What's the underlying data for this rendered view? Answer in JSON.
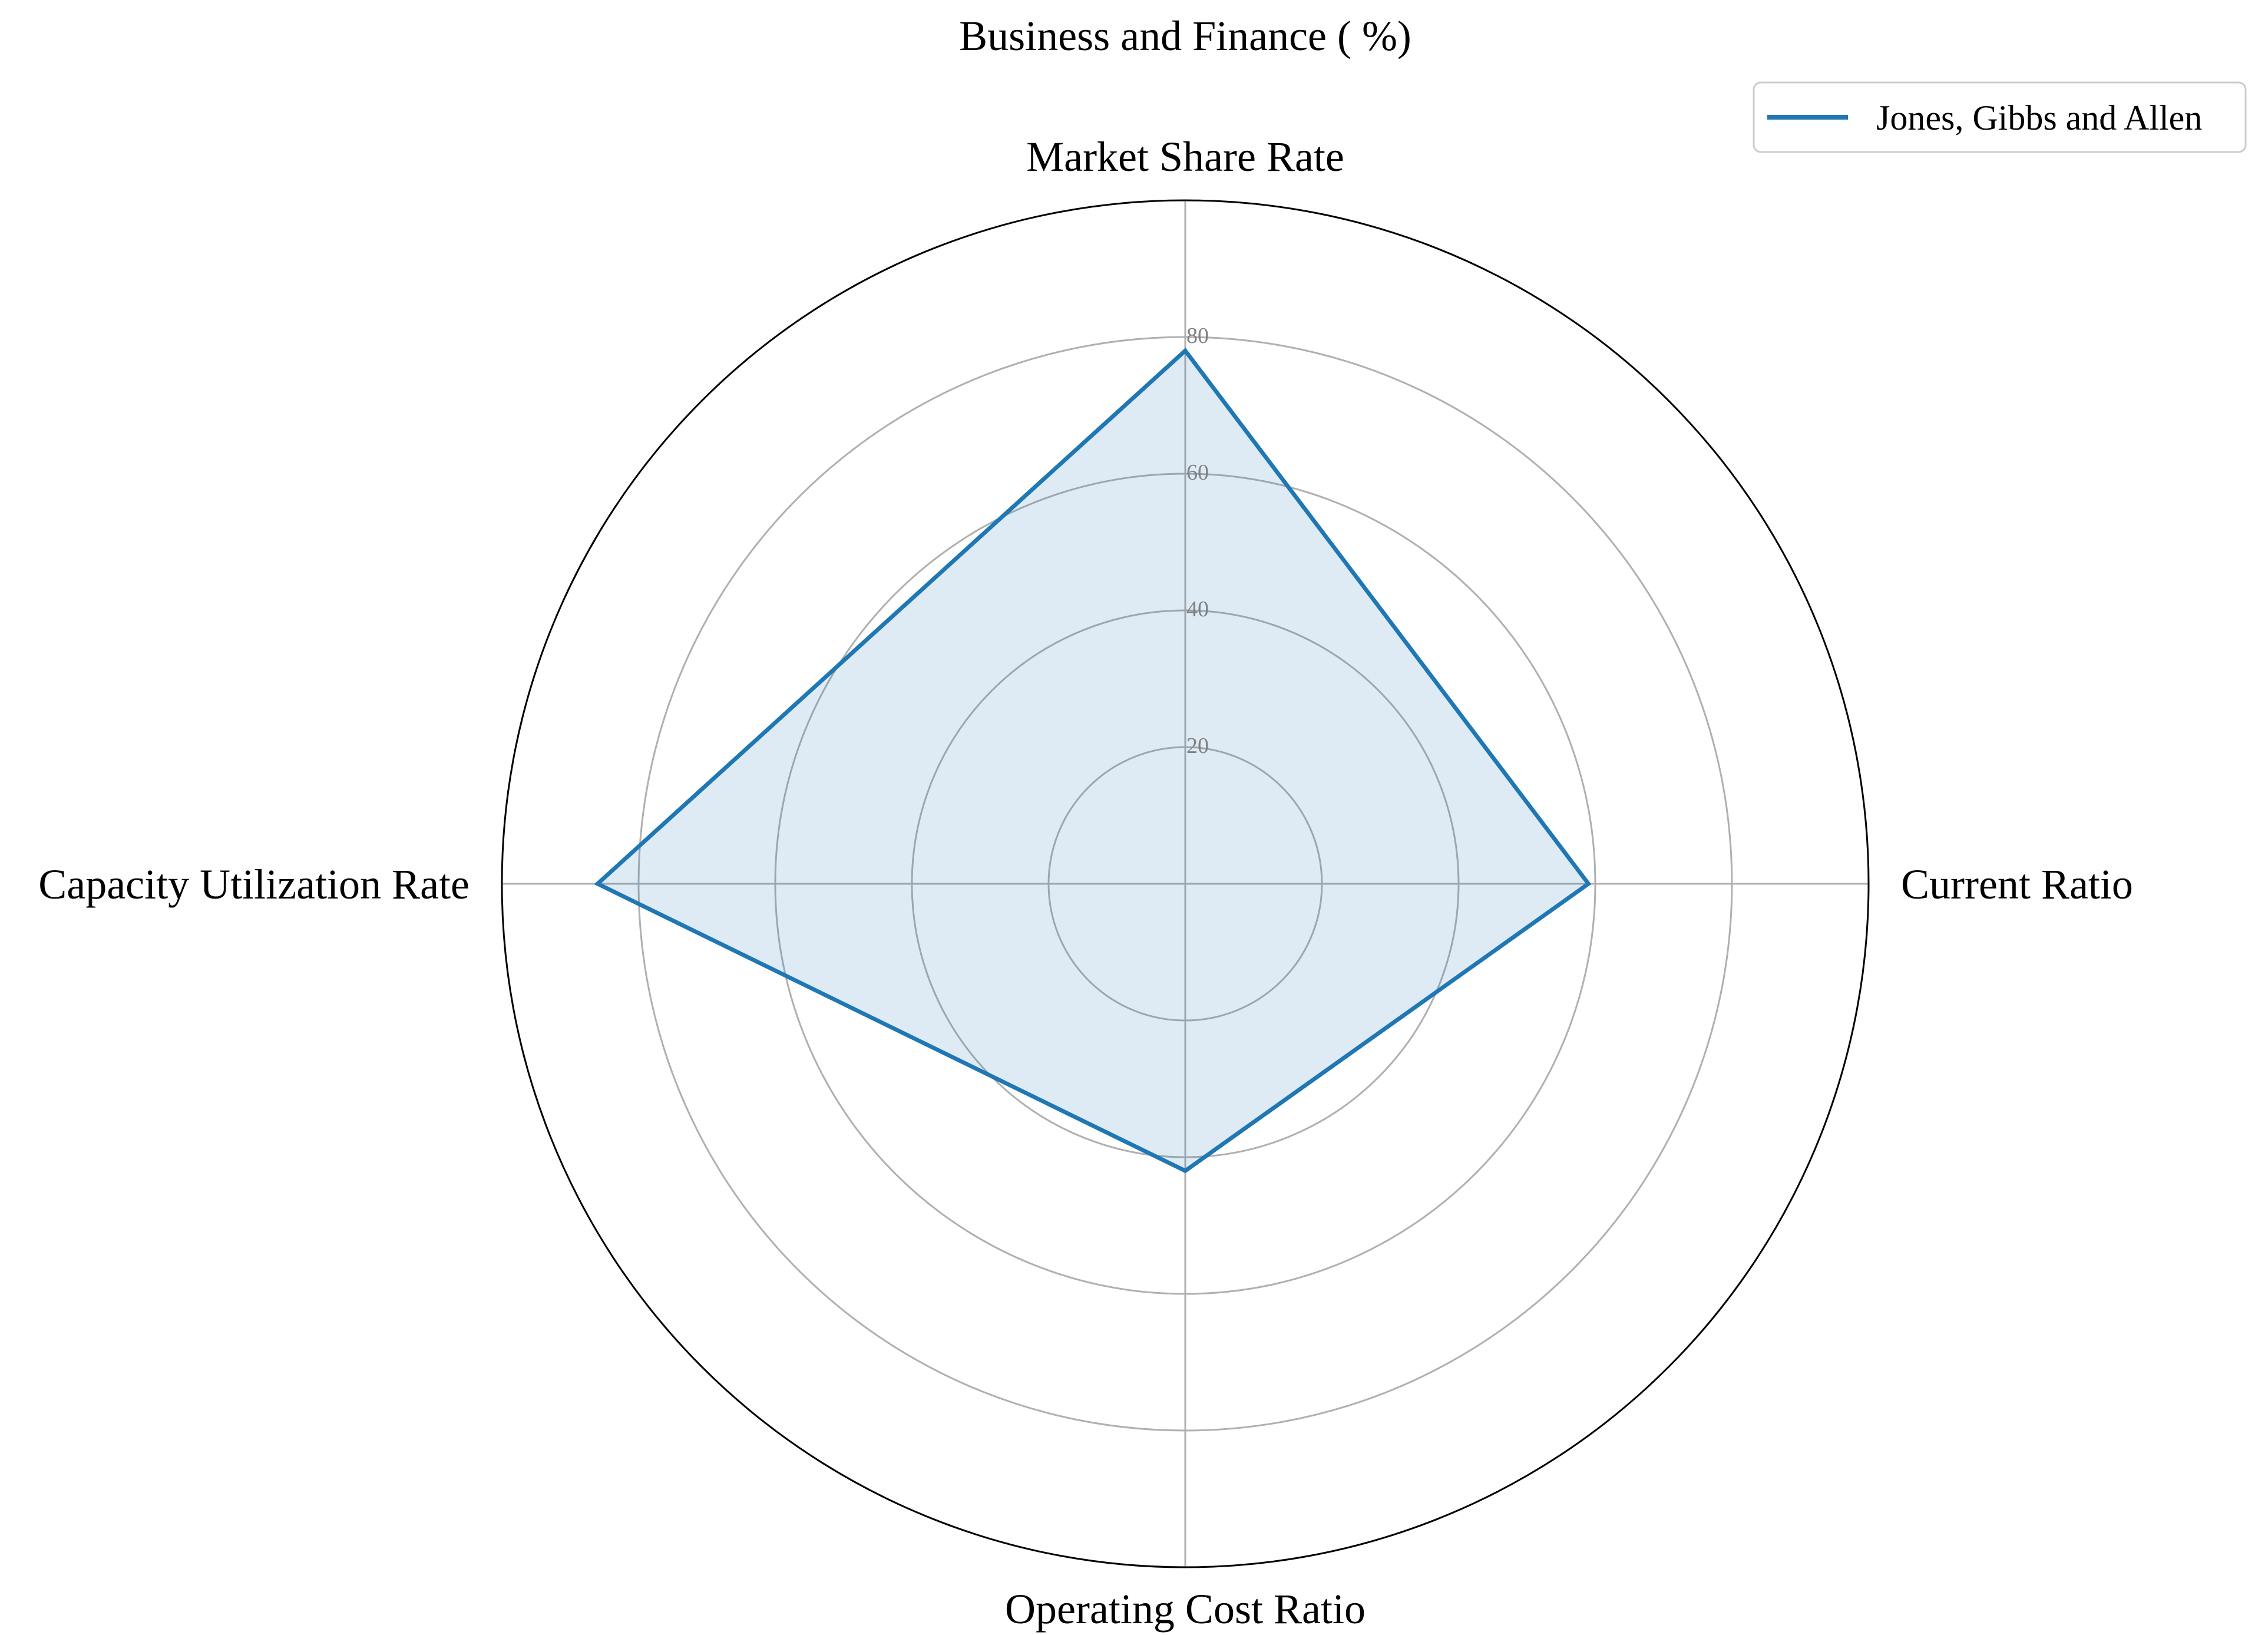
{
  "chart_data": {
    "type": "radar",
    "title": "Business and Finance ( %)",
    "categories": [
      "Market Share Rate",
      "Current Ratio",
      "Operating Cost Ratio",
      "Capacity Utilization Rate"
    ],
    "series": [
      {
        "name": "Jones, Gibbs and Allen",
        "values": [
          78,
          59,
          42,
          86
        ]
      }
    ],
    "radial_ticks": [
      20,
      40,
      60,
      80
    ],
    "rlim": [
      0,
      100
    ],
    "grid": true,
    "legend_position": "top-right",
    "colors": {
      "series_line": "#1f77b4",
      "series_fill": "#1f77b4",
      "grid": "#b0b0b0",
      "spine": "#000000",
      "tick_label": "#808080"
    }
  }
}
